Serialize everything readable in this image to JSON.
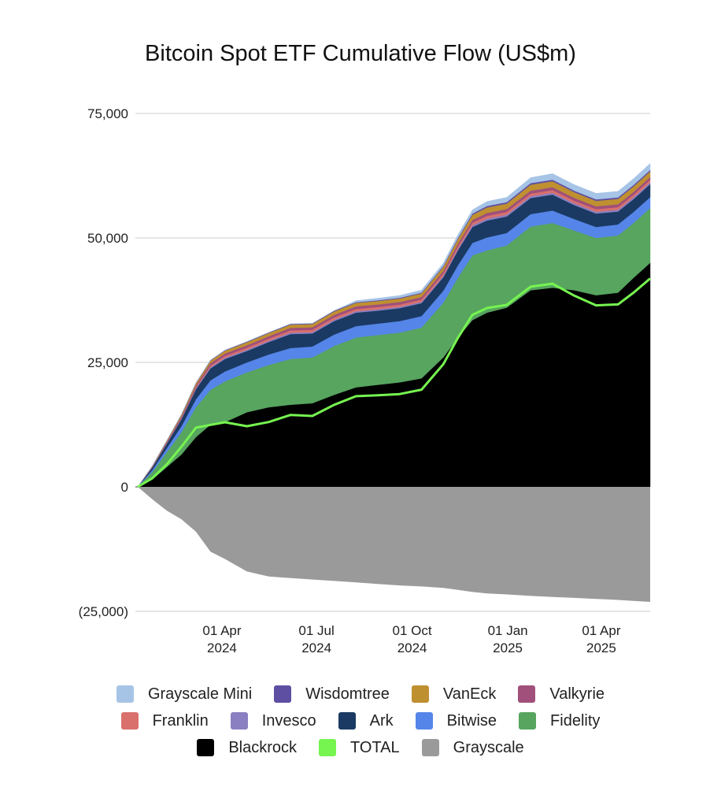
{
  "chart_data": {
    "type": "area",
    "stacked": true,
    "title": "Bitcoin Spot ETF Cumulative Flow (US$m)",
    "xlabel": "",
    "ylabel": "",
    "ylim": [
      -25000,
      75000
    ],
    "xlim": [
      "2024-01-11",
      "2025-05-18"
    ],
    "grid": true,
    "legend_position": "bottom",
    "y_ticks": [
      {
        "value": 75000,
        "label": "75,000"
      },
      {
        "value": 50000,
        "label": "50,000"
      },
      {
        "value": 25000,
        "label": "25,000"
      },
      {
        "value": 0,
        "label": "0"
      },
      {
        "value": -25000,
        "label": "(25,000)"
      }
    ],
    "x_ticks": [
      {
        "date": "2024-04-01",
        "line1": "01 Apr",
        "line2": "2024"
      },
      {
        "date": "2024-07-01",
        "line1": "01 Jul",
        "line2": "2024"
      },
      {
        "date": "2024-10-01",
        "line1": "01 Oct",
        "line2": "2024"
      },
      {
        "date": "2025-01-01",
        "line1": "01 Jan",
        "line2": "2025"
      },
      {
        "date": "2025-04-01",
        "line1": "01 Apr",
        "line2": "2025"
      }
    ],
    "x": [
      "2024-01-11",
      "2024-01-25",
      "2024-02-08",
      "2024-02-22",
      "2024-03-07",
      "2024-03-21",
      "2024-04-04",
      "2024-04-25",
      "2024-05-16",
      "2024-06-06",
      "2024-06-27",
      "2024-07-18",
      "2024-08-08",
      "2024-08-29",
      "2024-09-19",
      "2024-10-10",
      "2024-10-31",
      "2024-11-14",
      "2024-11-28",
      "2024-12-12",
      "2024-12-31",
      "2025-01-23",
      "2025-02-13",
      "2025-03-06",
      "2025-03-27",
      "2025-04-17",
      "2025-05-02",
      "2025-05-18"
    ],
    "series": [
      {
        "name": "Blackrock",
        "color": "#000000",
        "kind": "stack",
        "values": [
          0,
          1500,
          4000,
          6500,
          10000,
          12500,
          13000,
          15000,
          16000,
          16500,
          16800,
          18500,
          20000,
          20500,
          21000,
          21800,
          26000,
          30000,
          33500,
          35000,
          36000,
          39500,
          40000,
          39500,
          38500,
          39000,
          42000,
          45000
        ]
      },
      {
        "name": "Fidelity",
        "color": "#57a55f",
        "kind": "stack",
        "values": [
          0,
          1500,
          3000,
          4500,
          6000,
          7000,
          8200,
          8000,
          8500,
          9200,
          9200,
          9800,
          10000,
          10000,
          10000,
          10200,
          11000,
          12000,
          13000,
          12500,
          12500,
          12800,
          13000,
          12000,
          11500,
          11500,
          11000,
          11000
        ]
      },
      {
        "name": "Bitwise",
        "color": "#5585e8",
        "kind": "stack",
        "values": [
          0,
          400,
          800,
          1200,
          1600,
          1900,
          2000,
          2000,
          2100,
          2200,
          2200,
          2300,
          2300,
          2300,
          2300,
          2300,
          2400,
          2500,
          2500,
          2600,
          2500,
          2500,
          2500,
          2300,
          2200,
          2200,
          2200,
          2200
        ]
      },
      {
        "name": "Ark",
        "color": "#1a3a63",
        "kind": "stack",
        "values": [
          0,
          500,
          900,
          1400,
          2000,
          2400,
          2500,
          2300,
          2500,
          2800,
          2600,
          2700,
          2700,
          2600,
          2600,
          2600,
          2700,
          3000,
          3200,
          3400,
          3300,
          3200,
          3200,
          2800,
          2700,
          2600,
          2600,
          2600
        ]
      },
      {
        "name": "Invesco",
        "color": "#8a7fc0",
        "kind": "stack",
        "values": [
          0,
          50,
          100,
          150,
          200,
          250,
          250,
          250,
          250,
          280,
          280,
          280,
          280,
          270,
          270,
          270,
          280,
          300,
          350,
          400,
          380,
          380,
          380,
          370,
          370,
          370,
          370,
          370
        ]
      },
      {
        "name": "Franklin",
        "color": "#d9706c",
        "kind": "stack",
        "values": [
          0,
          50,
          100,
          150,
          200,
          300,
          350,
          400,
          420,
          450,
          450,
          450,
          450,
          450,
          450,
          450,
          460,
          480,
          500,
          520,
          520,
          520,
          520,
          500,
          500,
          500,
          500,
          500
        ]
      },
      {
        "name": "Valkyrie",
        "color": "#a0507a",
        "kind": "stack",
        "values": [
          0,
          100,
          200,
          300,
          400,
          500,
          500,
          500,
          500,
          520,
          520,
          530,
          530,
          520,
          520,
          520,
          540,
          560,
          580,
          600,
          600,
          600,
          600,
          580,
          580,
          580,
          580,
          580
        ]
      },
      {
        "name": "VanEck",
        "color": "#bf9030",
        "kind": "stack",
        "values": [
          0,
          100,
          200,
          300,
          400,
          500,
          550,
          600,
          620,
          650,
          650,
          680,
          700,
          700,
          700,
          720,
          800,
          900,
          1000,
          1100,
          1100,
          1200,
          1200,
          1150,
          1100,
          1100,
          1100,
          1100
        ]
      },
      {
        "name": "Wisdomtree",
        "color": "#5e4fa2",
        "kind": "stack",
        "values": [
          0,
          20,
          40,
          60,
          80,
          100,
          120,
          130,
          130,
          140,
          140,
          150,
          150,
          150,
          150,
          160,
          200,
          230,
          270,
          300,
          300,
          310,
          310,
          300,
          300,
          300,
          300,
          300
        ]
      },
      {
        "name": "Grayscale Mini",
        "color": "#a6c4e6",
        "kind": "stack",
        "values": [
          0,
          0,
          0,
          0,
          0,
          0,
          0,
          0,
          0,
          0,
          0,
          0,
          300,
          400,
          450,
          500,
          550,
          650,
          750,
          900,
          950,
          1100,
          1200,
          1200,
          1200,
          1200,
          1250,
          1300
        ]
      },
      {
        "name": "Grayscale",
        "color": "#9a9a9a",
        "kind": "negative",
        "values": [
          0,
          -2500,
          -4800,
          -6500,
          -9000,
          -13000,
          -14500,
          -17000,
          -18000,
          -18300,
          -18600,
          -18900,
          -19200,
          -19500,
          -19800,
          -20000,
          -20300,
          -20700,
          -21100,
          -21400,
          -21600,
          -21900,
          -22100,
          -22300,
          -22500,
          -22700,
          -22900,
          -23100
        ]
      },
      {
        "name": "TOTAL",
        "color": "#76f450",
        "kind": "line",
        "values": [
          0,
          1720,
          4540,
          8060,
          11880,
          12450,
          12970,
          12180,
          13020,
          14440,
          14240,
          16490,
          18210,
          18390,
          18640,
          19520,
          24630,
          29920,
          34550,
          35920,
          36550,
          40210,
          40810,
          38400,
          36450,
          36650,
          39000,
          41850
        ]
      }
    ],
    "legend": [
      [
        "Grayscale Mini",
        "Wisdomtree",
        "VanEck",
        "Valkyrie"
      ],
      [
        "Franklin",
        "Invesco",
        "Ark",
        "Bitwise",
        "Fidelity"
      ],
      [
        "Blackrock",
        "TOTAL",
        "Grayscale"
      ]
    ]
  }
}
